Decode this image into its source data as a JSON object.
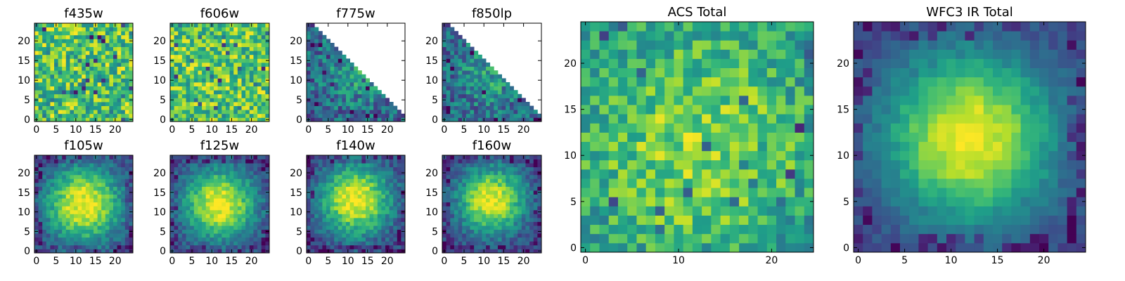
{
  "chart_data": [
    {
      "type": "heatmap",
      "title": "f435w",
      "grid_size": 25,
      "xlim": [
        -0.5,
        24.5
      ],
      "ylim": [
        -0.5,
        24.5
      ],
      "xticks": [
        0,
        5,
        10,
        15,
        20
      ],
      "yticks": [
        0,
        5,
        10,
        15,
        20
      ],
      "pattern": "uniform-noise",
      "peak": [
        12,
        12
      ],
      "level": 0.72,
      "spread": 9,
      "noise": 0.28,
      "mask": "none",
      "seed": 11
    },
    {
      "type": "heatmap",
      "title": "f606w",
      "grid_size": 25,
      "xlim": [
        -0.5,
        24.5
      ],
      "ylim": [
        -0.5,
        24.5
      ],
      "xticks": [
        0,
        5,
        10,
        15,
        20
      ],
      "yticks": [
        0,
        5,
        10,
        15,
        20
      ],
      "pattern": "uniform-noise",
      "peak": [
        12,
        12
      ],
      "level": 0.74,
      "spread": 9,
      "noise": 0.26,
      "mask": "none",
      "seed": 23
    },
    {
      "type": "heatmap",
      "title": "f775w",
      "grid_size": 25,
      "xlim": [
        -0.5,
        24.5
      ],
      "ylim": [
        -0.5,
        24.5
      ],
      "xticks": [
        0,
        5,
        10,
        15,
        20
      ],
      "yticks": [
        0,
        5,
        10,
        15,
        20
      ],
      "pattern": "noisy-source",
      "peak": [
        13,
        13
      ],
      "level": 0.55,
      "spread": 7,
      "noise": 0.22,
      "mask": "upper-right-triangle",
      "seed": 37
    },
    {
      "type": "heatmap",
      "title": "f850lp",
      "grid_size": 25,
      "xlim": [
        -0.5,
        24.5
      ],
      "ylim": [
        -0.5,
        24.5
      ],
      "xticks": [
        0,
        5,
        10,
        15,
        20
      ],
      "yticks": [
        0,
        5,
        10,
        15,
        20
      ],
      "pattern": "noisy-source",
      "peak": [
        13,
        12
      ],
      "level": 0.55,
      "spread": 7,
      "noise": 0.22,
      "mask": "upper-right-triangle",
      "seed": 41
    },
    {
      "type": "heatmap",
      "title": "f105w",
      "grid_size": 25,
      "xlim": [
        -0.5,
        24.5
      ],
      "ylim": [
        -0.5,
        24.5
      ],
      "xticks": [
        0,
        5,
        10,
        15,
        20
      ],
      "yticks": [
        0,
        5,
        10,
        15,
        20
      ],
      "pattern": "gaussian-source",
      "peak": [
        12,
        12
      ],
      "level": 1.0,
      "spread": 7,
      "noise": 0.12,
      "mask": "none",
      "seed": 53
    },
    {
      "type": "heatmap",
      "title": "f125w",
      "grid_size": 25,
      "xlim": [
        -0.5,
        24.5
      ],
      "ylim": [
        -0.5,
        24.5
      ],
      "xticks": [
        0,
        5,
        10,
        15,
        20
      ],
      "yticks": [
        0,
        5,
        10,
        15,
        20
      ],
      "pattern": "gaussian-source",
      "peak": [
        12,
        12
      ],
      "level": 1.0,
      "spread": 6.5,
      "noise": 0.12,
      "mask": "none",
      "seed": 67
    },
    {
      "type": "heatmap",
      "title": "f140w",
      "grid_size": 25,
      "xlim": [
        -0.5,
        24.5
      ],
      "ylim": [
        -0.5,
        24.5
      ],
      "xticks": [
        0,
        5,
        10,
        15,
        20
      ],
      "yticks": [
        0,
        5,
        10,
        15,
        20
      ],
      "pattern": "gaussian-source",
      "peak": [
        12,
        13
      ],
      "level": 1.0,
      "spread": 6.5,
      "noise": 0.13,
      "mask": "none",
      "seed": 79
    },
    {
      "type": "heatmap",
      "title": "f160w",
      "grid_size": 25,
      "xlim": [
        -0.5,
        24.5
      ],
      "ylim": [
        -0.5,
        24.5
      ],
      "xticks": [
        0,
        5,
        10,
        15,
        20
      ],
      "yticks": [
        0,
        5,
        10,
        15,
        20
      ],
      "pattern": "gaussian-source",
      "peak": [
        12,
        13
      ],
      "level": 1.0,
      "spread": 6,
      "noise": 0.13,
      "mask": "none",
      "seed": 83
    },
    {
      "type": "heatmap",
      "title": "ACS Total",
      "grid_size": 25,
      "xlim": [
        -0.5,
        24.5
      ],
      "ylim": [
        -0.5,
        24.5
      ],
      "xticks": [
        0,
        10,
        20
      ],
      "yticks": [
        0,
        5,
        10,
        15,
        20
      ],
      "pattern": "noisy-source",
      "peak": [
        12,
        11
      ],
      "level": 0.82,
      "spread": 10,
      "noise": 0.2,
      "mask": "none",
      "seed": 97
    },
    {
      "type": "heatmap",
      "title": "WFC3 IR Total",
      "grid_size": 25,
      "xlim": [
        -0.5,
        24.5
      ],
      "ylim": [
        -0.5,
        24.5
      ],
      "xticks": [
        0,
        5,
        10,
        15,
        20
      ],
      "yticks": [
        0,
        5,
        10,
        15,
        20
      ],
      "pattern": "gaussian-source",
      "peak": [
        12,
        12
      ],
      "level": 1.0,
      "spread": 6.5,
      "noise": 0.07,
      "mask": "none",
      "seed": 101
    }
  ]
}
